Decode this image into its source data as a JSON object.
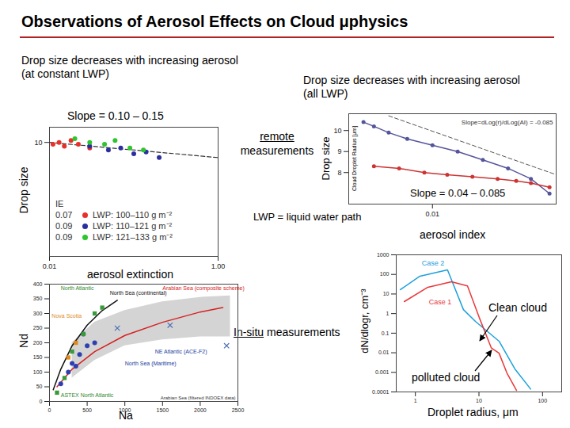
{
  "title": "Observations of Aerosol Effects on Cloud μphysics",
  "headings": [
    "Drop size decreases with increasing aerosol\n(at constant LWP)",
    "Drop size decreases with increasing aerosol\n(all LWP)"
  ],
  "labels": [
    "remote measurements",
    "In-situ measurements"
  ],
  "notes": [
    "LWP = liquid water path"
  ],
  "chart_data": [
    {
      "type": "scatter",
      "annotation": "Slope = 0.10 – 0.15",
      "xlabel": "aerosol extinction",
      "ylabel": "Drop size",
      "log": "x",
      "xlim": [
        0.01,
        1
      ],
      "xticks": [
        0.01,
        {
          "value": 1,
          "label": "1.00"
        }
      ],
      "ylim": [
        4,
        10.8
      ],
      "yticks": [
        10
      ],
      "legend_title": "IE",
      "trend": {
        "color": "#333333",
        "line_style": "dashed",
        "x": [
          0.01,
          1
        ],
        "y": [
          10.0,
          9.2
        ]
      },
      "series": [
        {
          "name": "LWP: 100–110 g m⁻²",
          "ie": 0.07,
          "color": "#e8302a",
          "marker": "circle",
          "x": [
            0.011,
            0.013,
            0.015,
            0.018,
            0.022,
            0.03
          ],
          "y": [
            9.9,
            10.0,
            9.8,
            10.1,
            9.9,
            9.7
          ]
        },
        {
          "name": "LWP: 110–121 g m⁻²",
          "ie": 0.09,
          "color": "#2b2f9e",
          "marker": "circle",
          "x": [
            0.03,
            0.05,
            0.07,
            0.1,
            0.14,
            0.2
          ],
          "y": [
            9.8,
            9.6,
            9.7,
            9.4,
            9.5,
            9.2
          ]
        },
        {
          "name": "LWP: 121–133 g m⁻²",
          "ie": 0.09,
          "color": "#2ec52e",
          "marker": "circle",
          "x": [
            0.02,
            0.03,
            0.045,
            0.06,
            0.09,
            0.13
          ],
          "y": [
            10.2,
            10.0,
            9.9,
            10.1,
            9.7,
            9.6
          ]
        }
      ]
    },
    {
      "type": "line",
      "annotation": "Slope = 0.04 – 0.085",
      "inset_text": "Slope=dLog(r)/dLog(AI) = -0.085",
      "inner_ylabel": "Cloud Droplet Radius [μm]",
      "xlabel": "aerosol index",
      "ylabel": "Drop size",
      "log": "x",
      "xlim": [
        0.001,
        0.3
      ],
      "xticks": [
        0.01
      ],
      "ylim": [
        6.5,
        10.8
      ],
      "yticks": [
        8,
        9,
        10
      ],
      "reference": {
        "color": "#555555",
        "line_style": "dashed",
        "x": [
          0.003,
          0.3
        ],
        "y": [
          10.7,
          7.9
        ]
      },
      "series": [
        {
          "color": "#54549c",
          "marker": "circle",
          "x": [
            0.0015,
            0.002,
            0.003,
            0.005,
            0.01,
            0.02,
            0.04,
            0.08,
            0.15,
            0.25
          ],
          "y": [
            10.4,
            10.2,
            9.9,
            9.6,
            9.3,
            9.0,
            8.6,
            8.2,
            7.7,
            7.0
          ]
        },
        {
          "color": "#cc3333",
          "marker": "circle",
          "x": [
            0.002,
            0.004,
            0.008,
            0.015,
            0.03,
            0.06,
            0.1,
            0.15,
            0.25
          ],
          "y": [
            8.3,
            8.2,
            8.0,
            7.9,
            7.8,
            7.7,
            7.6,
            7.5,
            7.3
          ]
        }
      ]
    },
    {
      "type": "scatter",
      "xlabel": "Na",
      "ylabel": "Nd",
      "xlim": [
        0,
        2500
      ],
      "xticks": [
        0,
        500,
        1000,
        1500,
        2000,
        2500
      ],
      "ylim": [
        0,
        400
      ],
      "yticks": [
        0,
        50,
        100,
        150,
        200,
        250,
        300,
        350,
        400
      ],
      "band": {
        "name": "Arabian Sea (filtered INDOEX data)",
        "color": "#c9c9c9",
        "x": [
          300,
          600,
          1000,
          1500,
          2000,
          2400
        ],
        "y1": [
          80,
          140,
          190,
          210,
          220,
          220
        ],
        "y2": [
          200,
          270,
          310,
          340,
          355,
          360
        ]
      },
      "series": [
        {
          "type": "line",
          "color": "#111111",
          "x": [
            50,
            150,
            300,
            500,
            700,
            900
          ],
          "y": [
            40,
            110,
            190,
            260,
            310,
            345
          ]
        },
        {
          "type": "line",
          "color": "#d62020",
          "x": [
            100,
            300,
            600,
            1000,
            1500,
            2000,
            2300
          ],
          "y": [
            50,
            110,
            170,
            225,
            270,
            305,
            320
          ]
        },
        {
          "type": "scatter",
          "marker": "circle",
          "color": "#2f3fb0",
          "x": [
            150,
            250,
            300,
            350,
            400,
            500,
            600,
            450
          ],
          "y": [
            60,
            100,
            130,
            120,
            160,
            190,
            200,
            230
          ]
        },
        {
          "type": "scatter",
          "marker": "square",
          "color": "#3a9a3a",
          "x": [
            100,
            200,
            300,
            450,
            600,
            700
          ],
          "y": [
            30,
            80,
            170,
            230,
            300,
            320
          ]
        },
        {
          "type": "scatter",
          "marker": "square",
          "color": "#e08a1e",
          "x": [
            250,
            350
          ],
          "y": [
            150,
            200
          ]
        },
        {
          "type": "scatter",
          "marker": "x",
          "color": "#4a6fb5",
          "x": [
            900,
            1600,
            2350
          ],
          "y": [
            250,
            260,
            190
          ]
        }
      ],
      "labels": [
        {
          "text": "North Atlantic",
          "x": 150,
          "y": 385,
          "color": "#2e8b2e"
        },
        {
          "text": "North Sea (continental)",
          "x": 800,
          "y": 370,
          "color": "#111111"
        },
        {
          "text": "Arabian Sea (composite scheme)",
          "x": 1500,
          "y": 385,
          "color": "#d62020"
        },
        {
          "text": "Nova Scotia",
          "x": 30,
          "y": 290,
          "color": "#e08a1e"
        },
        {
          "text": "North Sea (Maritime)",
          "x": 1000,
          "y": 130,
          "color": "#2040a0"
        },
        {
          "text": "NE Atlantic (ACE-F2)",
          "x": 1400,
          "y": 170,
          "color": "#2040a0"
        },
        {
          "text": "ASTEX North Atlantic",
          "x": 150,
          "y": 20,
          "color": "#2e8b2e"
        }
      ]
    },
    {
      "type": "line",
      "xlabel": "Droplet radius, μm",
      "ylabel": "dN/dlogr, cm⁻³",
      "log": true,
      "xlim": [
        0.5,
        200
      ],
      "xticks": [
        1,
        10,
        100
      ],
      "ylim": [
        0.0001,
        1000
      ],
      "yticks": [
        0.0001,
        0.001,
        0.01,
        0.1,
        1,
        10,
        100,
        1000
      ],
      "series": [
        {
          "name": "Case 2",
          "color": "#1ea0dc",
          "x": [
            0.58,
            1.18,
            3.2,
            5.7,
            8.8,
            20.7,
            36.7,
            65
          ],
          "y": [
            16.6,
            81,
            170,
            1.6,
            0.4,
            0.039,
            0.0015,
            0.00014
          ]
        },
        {
          "name": "Case 1",
          "color": "#e8383a",
          "x": [
            0.67,
            1.57,
            3.7,
            6.6,
            10.1,
            15.6,
            20.7,
            27.5,
            39
          ],
          "y": [
            4.1,
            22,
            42,
            26,
            0.63,
            0.018,
            0.0095,
            0.00093,
            0.00012
          ]
        }
      ],
      "annotations": [
        "Clean cloud",
        "polluted cloud"
      ]
    }
  ]
}
